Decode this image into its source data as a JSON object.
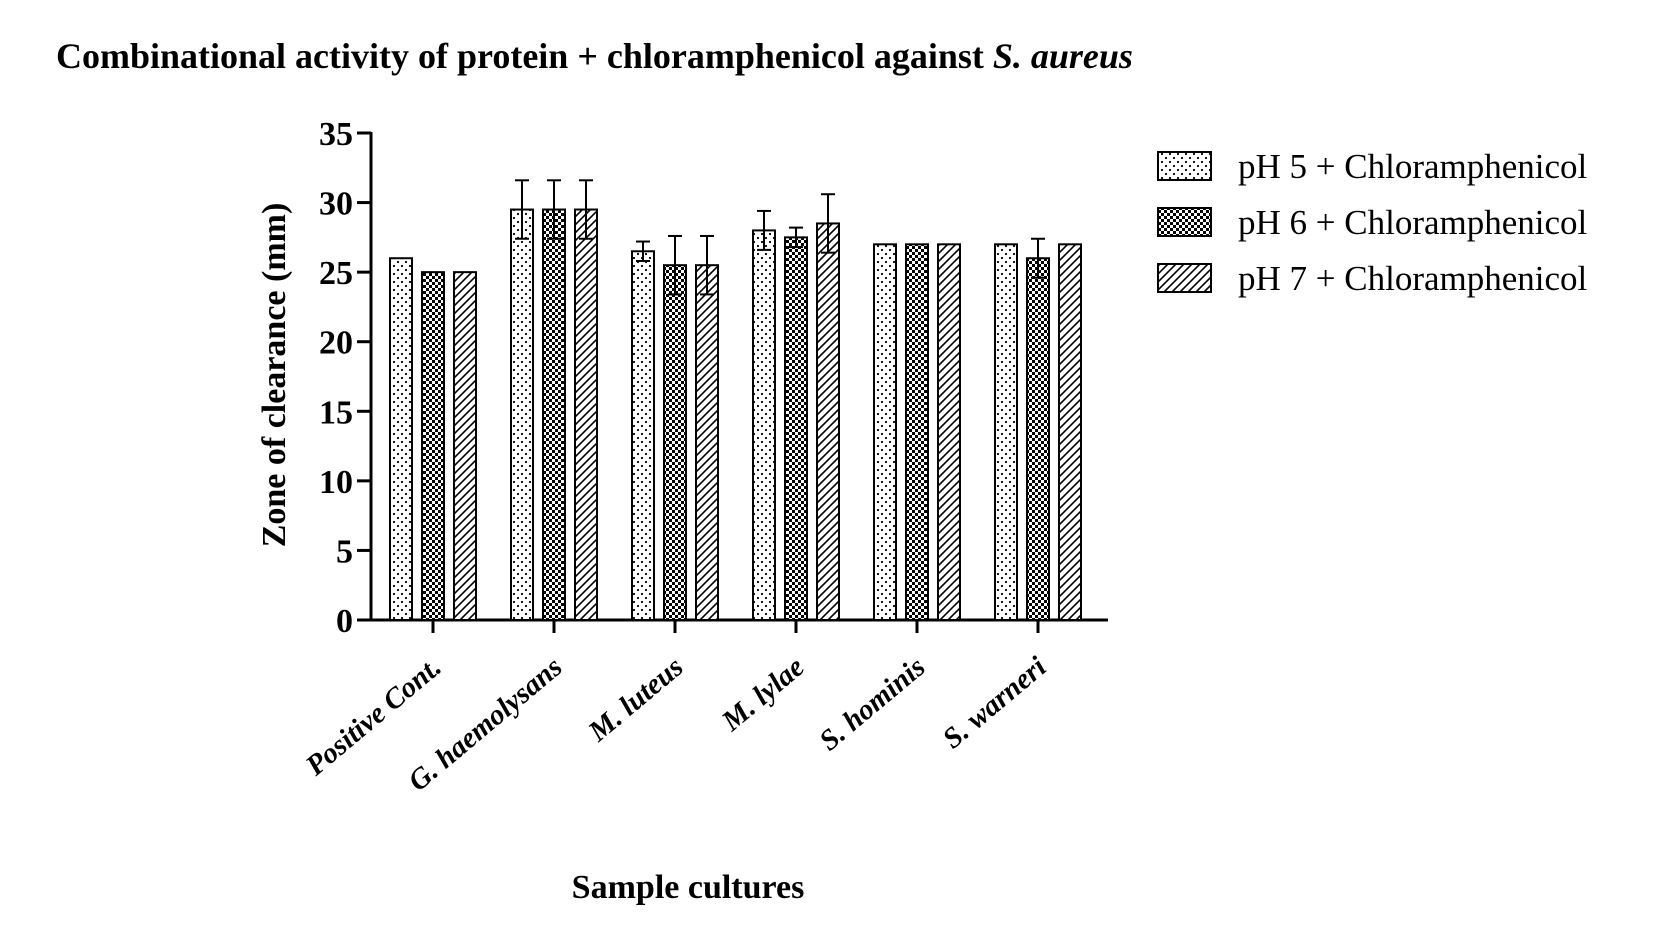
{
  "chart_data": {
    "type": "bar",
    "title": "Combinational activity of protein + chloramphenicol against ",
    "title_italic": "S. aureus",
    "xlabel": "Sample cultures",
    "ylabel": "Zone of clearance (mm)",
    "ylim": [
      0,
      35
    ],
    "yticks": [
      "0",
      "5",
      "10",
      "15",
      "20",
      "25",
      "30",
      "35"
    ],
    "grid": false,
    "legend_position": "top-right",
    "categories": [
      "Positive Cont.",
      "G. haemolysans",
      "M. luteus",
      "M. lylae",
      "S. hominis",
      "S. warneri"
    ],
    "series": [
      {
        "name": "pH 5 + Chloramphenicol",
        "pattern": "dots",
        "values": [
          26,
          29.5,
          26.5,
          28,
          27,
          27
        ],
        "errors": [
          0,
          2.1,
          0.7,
          1.4,
          0,
          0
        ]
      },
      {
        "name": "pH 6 + Chloramphenicol",
        "pattern": "checker",
        "values": [
          25,
          29.5,
          25.5,
          27.5,
          27,
          26
        ],
        "errors": [
          0,
          2.1,
          2.1,
          0.7,
          0,
          1.4
        ]
      },
      {
        "name": "pH 7 + Chloramphenicol",
        "pattern": "hatch",
        "values": [
          25,
          29.5,
          25.5,
          28.5,
          27,
          27
        ],
        "errors": [
          0,
          2.1,
          2.1,
          2.1,
          0,
          0
        ]
      }
    ]
  }
}
